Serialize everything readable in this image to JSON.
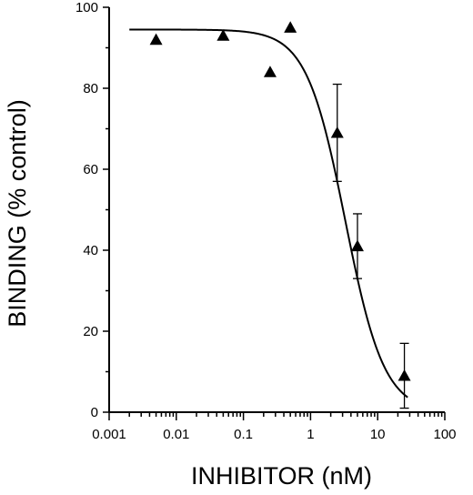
{
  "chart_data": {
    "type": "scatter",
    "xlabel": "INHIBITOR (nM)",
    "ylabel": "BINDING (% control)",
    "xscale": "log",
    "xlim": [
      0.001,
      100
    ],
    "ylim": [
      0,
      100
    ],
    "x_ticks": [
      0.001,
      0.01,
      0.1,
      1,
      10,
      100
    ],
    "x_tick_labels": [
      "0.001",
      "0.01",
      "0.1",
      "1",
      "10",
      "100"
    ],
    "y_ticks": [
      0,
      20,
      40,
      60,
      80,
      100
    ],
    "y_tick_labels": [
      "0",
      "20",
      "40",
      "60",
      "80",
      "100"
    ],
    "grid": false,
    "marker": "triangle",
    "points": [
      {
        "x": 0.005,
        "y": 92
      },
      {
        "x": 0.05,
        "y": 93
      },
      {
        "x": 0.25,
        "y": 84
      },
      {
        "x": 0.5,
        "y": 95
      },
      {
        "x": 2.5,
        "y": 69,
        "err": 12
      },
      {
        "x": 5,
        "y": 41,
        "err": 8
      },
      {
        "x": 25,
        "y": 9,
        "err": 8
      }
    ],
    "fit_curve": {
      "type": "sigmoid",
      "top": 94.5,
      "bottom": 0,
      "ic50": 3.3,
      "hill": 1.5,
      "x_range": [
        0.002,
        28
      ]
    }
  }
}
